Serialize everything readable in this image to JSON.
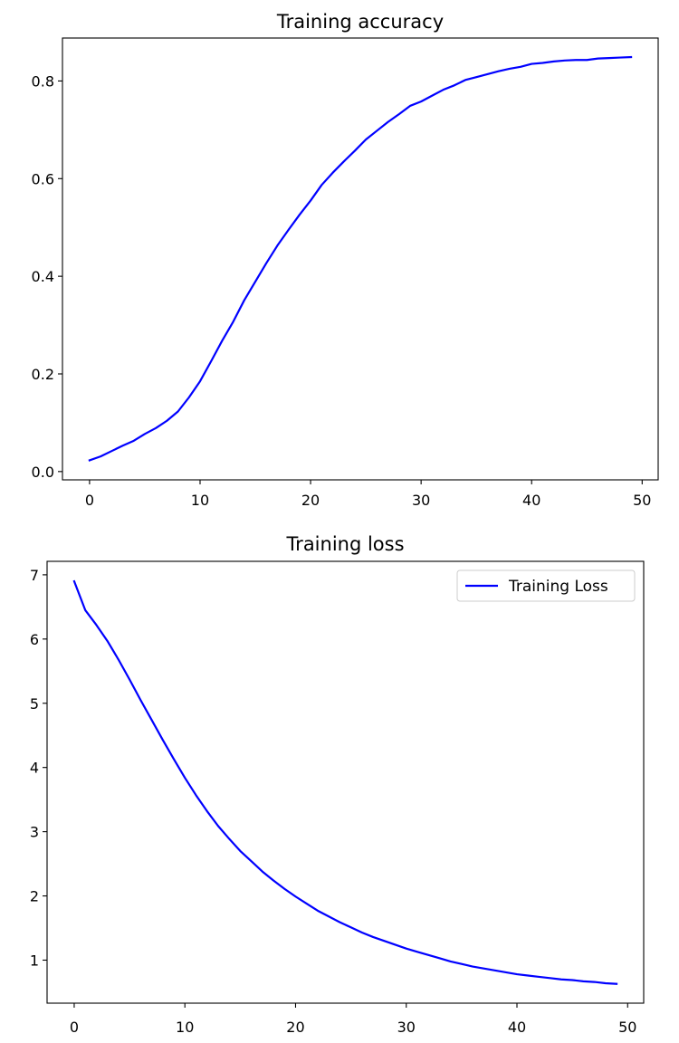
{
  "chart_data": [
    {
      "type": "line",
      "title": "Training accuracy",
      "xlabel": "",
      "ylabel": "",
      "xlim": [
        -2.45,
        51.45
      ],
      "ylim": [
        -0.017,
        0.888
      ],
      "xticks": [
        0,
        10,
        20,
        30,
        40,
        50
      ],
      "yticks": [
        0.0,
        0.2,
        0.4,
        0.6,
        0.8
      ],
      "ytick_labels": [
        "0.0",
        "0.2",
        "0.4",
        "0.6",
        "0.8"
      ],
      "grid": false,
      "legend": null,
      "series": [
        {
          "color": "#0000ff",
          "x": [
            0,
            1,
            2,
            3,
            4,
            5,
            6,
            7,
            8,
            9,
            10,
            11,
            12,
            13,
            14,
            15,
            16,
            17,
            18,
            19,
            20,
            21,
            22,
            23,
            24,
            25,
            26,
            27,
            28,
            29,
            30,
            31,
            32,
            33,
            34,
            35,
            36,
            37,
            38,
            39,
            40,
            41,
            42,
            43,
            44,
            45,
            46,
            47,
            48,
            49
          ],
          "y": [
            0.023,
            0.031,
            0.042,
            0.053,
            0.063,
            0.077,
            0.089,
            0.104,
            0.123,
            0.152,
            0.185,
            0.226,
            0.268,
            0.307,
            0.351,
            0.389,
            0.427,
            0.463,
            0.495,
            0.526,
            0.555,
            0.587,
            0.612,
            0.635,
            0.657,
            0.68,
            0.698,
            0.716,
            0.732,
            0.749,
            0.758,
            0.77,
            0.782,
            0.791,
            0.802,
            0.808,
            0.814,
            0.82,
            0.825,
            0.829,
            0.835,
            0.837,
            0.84,
            0.842,
            0.843,
            0.843,
            0.846,
            0.847,
            0.848,
            0.849
          ]
        }
      ]
    },
    {
      "type": "line",
      "title": "Training loss",
      "xlabel": "",
      "ylabel": "",
      "xlim": [
        -2.45,
        51.45
      ],
      "ylim": [
        0.33,
        7.21
      ],
      "xticks": [
        0,
        10,
        20,
        30,
        40,
        50
      ],
      "yticks": [
        1,
        2,
        3,
        4,
        5,
        6,
        7
      ],
      "ytick_labels": [
        "1",
        "2",
        "3",
        "4",
        "5",
        "6",
        "7"
      ],
      "grid": false,
      "legend": "top-right",
      "series": [
        {
          "name": "Training Loss",
          "color": "#0000ff",
          "x": [
            0,
            1,
            2,
            3,
            4,
            5,
            6,
            7,
            8,
            9,
            10,
            11,
            12,
            13,
            14,
            15,
            16,
            17,
            18,
            19,
            20,
            21,
            22,
            23,
            24,
            25,
            26,
            27,
            28,
            29,
            30,
            31,
            32,
            33,
            34,
            35,
            36,
            37,
            38,
            39,
            40,
            41,
            42,
            43,
            44,
            45,
            46,
            47,
            48,
            49
          ],
          "y": [
            6.9,
            6.45,
            6.22,
            5.97,
            5.68,
            5.37,
            5.05,
            4.74,
            4.43,
            4.13,
            3.84,
            3.57,
            3.32,
            3.09,
            2.89,
            2.7,
            2.54,
            2.38,
            2.24,
            2.11,
            1.99,
            1.88,
            1.77,
            1.68,
            1.59,
            1.51,
            1.43,
            1.36,
            1.3,
            1.24,
            1.18,
            1.13,
            1.08,
            1.03,
            0.98,
            0.94,
            0.9,
            0.87,
            0.84,
            0.81,
            0.78,
            0.76,
            0.74,
            0.72,
            0.7,
            0.69,
            0.67,
            0.66,
            0.64,
            0.63
          ]
        }
      ]
    }
  ]
}
